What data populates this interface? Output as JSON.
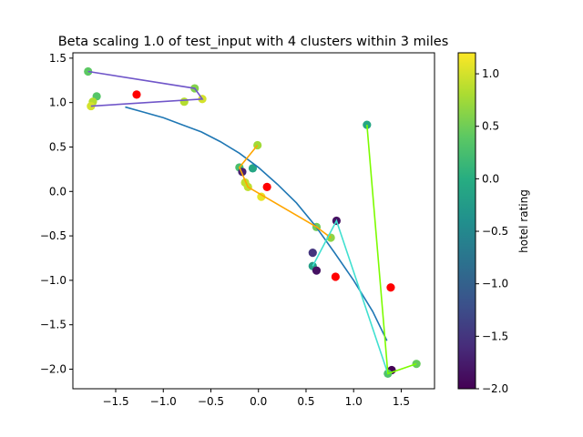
{
  "chart_data": {
    "type": "scatter",
    "title": "Beta scaling 1.0 of test_input with 4 clusters within 3 miles",
    "xlabel": "",
    "ylabel": "",
    "xlim": [
      -1.95,
      1.85
    ],
    "ylim": [
      -2.22,
      1.56
    ],
    "x_ticks": [
      -1.5,
      -1.0,
      -0.5,
      0.0,
      0.5,
      1.0,
      1.5
    ],
    "x_tick_labels": [
      "−1.5",
      "−1.0",
      "−0.5",
      "0.0",
      "0.5",
      "1.0",
      "1.5"
    ],
    "y_ticks": [
      -2.0,
      -1.5,
      -1.0,
      -0.5,
      0.0,
      0.5,
      1.0,
      1.5
    ],
    "y_tick_labels": [
      "−2.0",
      "−1.5",
      "−1.0",
      "−0.5",
      "0.0",
      "0.5",
      "1.0",
      "1.5"
    ],
    "grid": false,
    "colorbar": {
      "label": "hotel rating",
      "colormap": "viridis",
      "range": [
        -2.0,
        1.2
      ],
      "ticks": [
        -2.0,
        -1.5,
        -1.0,
        -0.5,
        0.0,
        0.5,
        1.0
      ],
      "tick_labels": [
        "−2.0",
        "−1.5",
        "−1.0",
        "−0.5",
        "0.0",
        "0.5",
        "1.0"
      ]
    },
    "hotels": [
      {
        "x": -1.79,
        "y": 1.35,
        "rating": 0.4
      },
      {
        "x": -1.7,
        "y": 1.07,
        "rating": 0.35
      },
      {
        "x": -1.74,
        "y": 1.01,
        "rating": 0.85
      },
      {
        "x": -1.76,
        "y": 0.96,
        "rating": 1.0
      },
      {
        "x": -0.78,
        "y": 1.01,
        "rating": 0.85
      },
      {
        "x": -0.67,
        "y": 1.16,
        "rating": 0.6
      },
      {
        "x": -0.59,
        "y": 1.04,
        "rating": 1.0
      },
      {
        "x": -0.01,
        "y": 0.52,
        "rating": 0.75
      },
      {
        "x": -0.06,
        "y": 0.26,
        "rating": -0.1
      },
      {
        "x": -0.2,
        "y": 0.27,
        "rating": 0.25
      },
      {
        "x": -0.17,
        "y": 0.22,
        "rating": -1.7
      },
      {
        "x": -0.14,
        "y": 0.1,
        "rating": 0.9
      },
      {
        "x": -0.11,
        "y": 0.05,
        "rating": 0.9
      },
      {
        "x": 0.03,
        "y": -0.06,
        "rating": 1.1
      },
      {
        "x": 0.61,
        "y": -0.4,
        "rating": 0.5
      },
      {
        "x": 0.76,
        "y": -0.52,
        "rating": 0.65
      },
      {
        "x": 0.82,
        "y": -0.33,
        "rating": -1.85
      },
      {
        "x": 0.57,
        "y": -0.69,
        "rating": -1.5
      },
      {
        "x": 0.57,
        "y": -0.84,
        "rating": -0.2
      },
      {
        "x": 0.61,
        "y": -0.89,
        "rating": -1.85
      },
      {
        "x": 1.14,
        "y": 0.75,
        "rating": -0.1
      },
      {
        "x": 1.4,
        "y": -2.01,
        "rating": -2.0
      },
      {
        "x": 1.36,
        "y": -2.05,
        "rating": 0.3
      },
      {
        "x": 1.66,
        "y": -1.94,
        "rating": 0.45
      }
    ],
    "centroids": [
      {
        "x": -1.28,
        "y": 1.09
      },
      {
        "x": 0.09,
        "y": 0.05
      },
      {
        "x": 0.81,
        "y": -0.96
      },
      {
        "x": 1.39,
        "y": -1.08
      }
    ],
    "centroid_color": "#ff0000",
    "route_lines": [
      {
        "color": "#7056c9",
        "points": [
          [
            -1.79,
            1.35
          ],
          [
            -0.67,
            1.16
          ],
          [
            -0.59,
            1.04
          ],
          [
            -1.76,
            0.96
          ]
        ]
      },
      {
        "color": "#ffa500",
        "points": [
          [
            -0.01,
            0.52
          ],
          [
            -0.2,
            0.27
          ],
          [
            -0.11,
            0.05
          ],
          [
            0.61,
            -0.4
          ],
          [
            0.76,
            -0.52
          ]
        ]
      },
      {
        "color": "#40e0d0",
        "points": [
          [
            0.57,
            -0.84
          ],
          [
            0.82,
            -0.33
          ],
          [
            1.36,
            -2.05
          ]
        ]
      },
      {
        "color": "#7cfc00",
        "points": [
          [
            1.14,
            0.75
          ],
          [
            1.36,
            -2.05
          ],
          [
            1.66,
            -1.94
          ]
        ]
      }
    ],
    "curve": {
      "color": "#1f77b4",
      "points": [
        [
          -1.4,
          0.95
        ],
        [
          -1.2,
          0.89
        ],
        [
          -1.0,
          0.83
        ],
        [
          -0.8,
          0.75
        ],
        [
          -0.6,
          0.67
        ],
        [
          -0.4,
          0.56
        ],
        [
          -0.2,
          0.43
        ],
        [
          0.0,
          0.27
        ],
        [
          0.2,
          0.08
        ],
        [
          0.4,
          -0.13
        ],
        [
          0.6,
          -0.39
        ],
        [
          0.8,
          -0.69
        ],
        [
          1.0,
          -1.0
        ],
        [
          1.2,
          -1.35
        ],
        [
          1.35,
          -1.68
        ]
      ]
    }
  }
}
